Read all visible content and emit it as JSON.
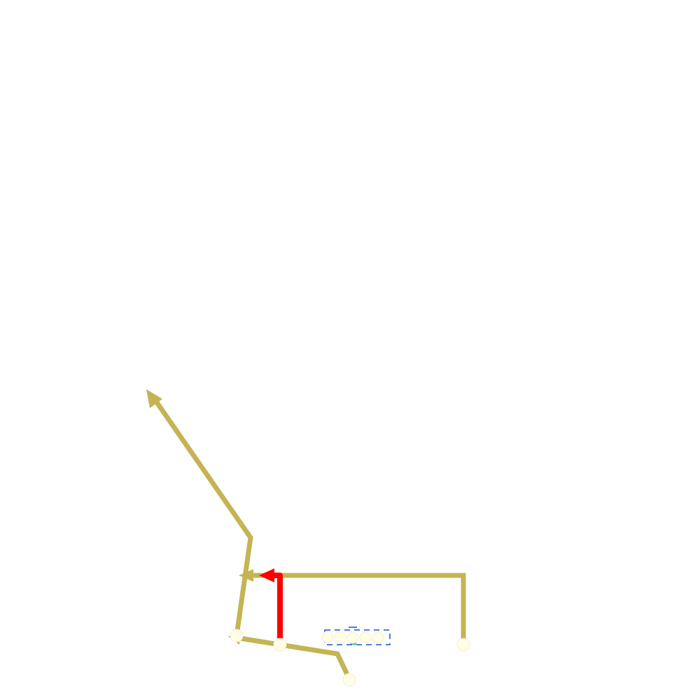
{
  "diagram": {
    "background": "#ffffff",
    "colors": {
      "path": "#c4b454",
      "highlight": "#ff0000",
      "node": "#fffde6",
      "dashed": "#1f4fd6",
      "accent": "#2ecc71"
    },
    "paths": [
      {
        "name": "gold-path-long-arrow",
        "color": "path",
        "arrow": true
      },
      {
        "name": "gold-path-bracket-arrow",
        "color": "path",
        "arrow": true
      },
      {
        "name": "gold-path-bottom-arrow",
        "color": "path",
        "arrow": true
      },
      {
        "name": "red-path-arrow",
        "color": "highlight",
        "arrow": true
      }
    ],
    "nodes": [
      {
        "name": "node-bottom-left"
      },
      {
        "name": "node-red-start"
      },
      {
        "name": "node-bottom-right"
      },
      {
        "name": "node-bottom"
      },
      {
        "name": "node-center-small"
      }
    ]
  }
}
